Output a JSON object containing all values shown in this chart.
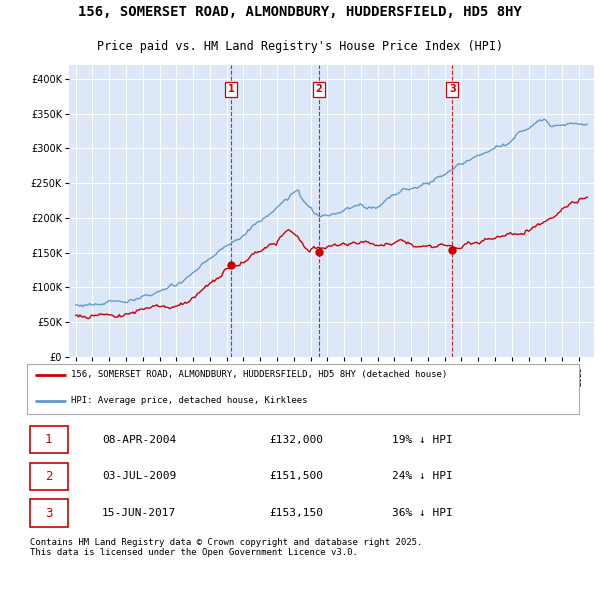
{
  "title": "156, SOMERSET ROAD, ALMONDBURY, HUDDERSFIELD, HD5 8HY",
  "subtitle": "Price paid vs. HM Land Registry's House Price Index (HPI)",
  "legend_line1": "156, SOMERSET ROAD, ALMONDBURY, HUDDERSFIELD, HD5 8HY (detached house)",
  "legend_line2": "HPI: Average price, detached house, Kirklees",
  "sale_dates_str": [
    "08-APR-2004",
    "03-JUL-2009",
    "15-JUN-2017"
  ],
  "sale_dates_num": [
    2004.27,
    2009.5,
    2017.45
  ],
  "sale_prices": [
    132000,
    151500,
    153150
  ],
  "sale_hpi_pct": [
    "19% ↓ HPI",
    "24% ↓ HPI",
    "36% ↓ HPI"
  ],
  "footer": "Contains HM Land Registry data © Crown copyright and database right 2025.\nThis data is licensed under the Open Government Licence v3.0.",
  "ylim": [
    0,
    420000
  ],
  "yticks": [
    0,
    50000,
    100000,
    150000,
    200000,
    250000,
    300000,
    350000,
    400000
  ],
  "plot_bg_color": "#dce8f8",
  "red_color": "#cc0000",
  "blue_color": "#6699cc",
  "grid_color": "#ffffff"
}
